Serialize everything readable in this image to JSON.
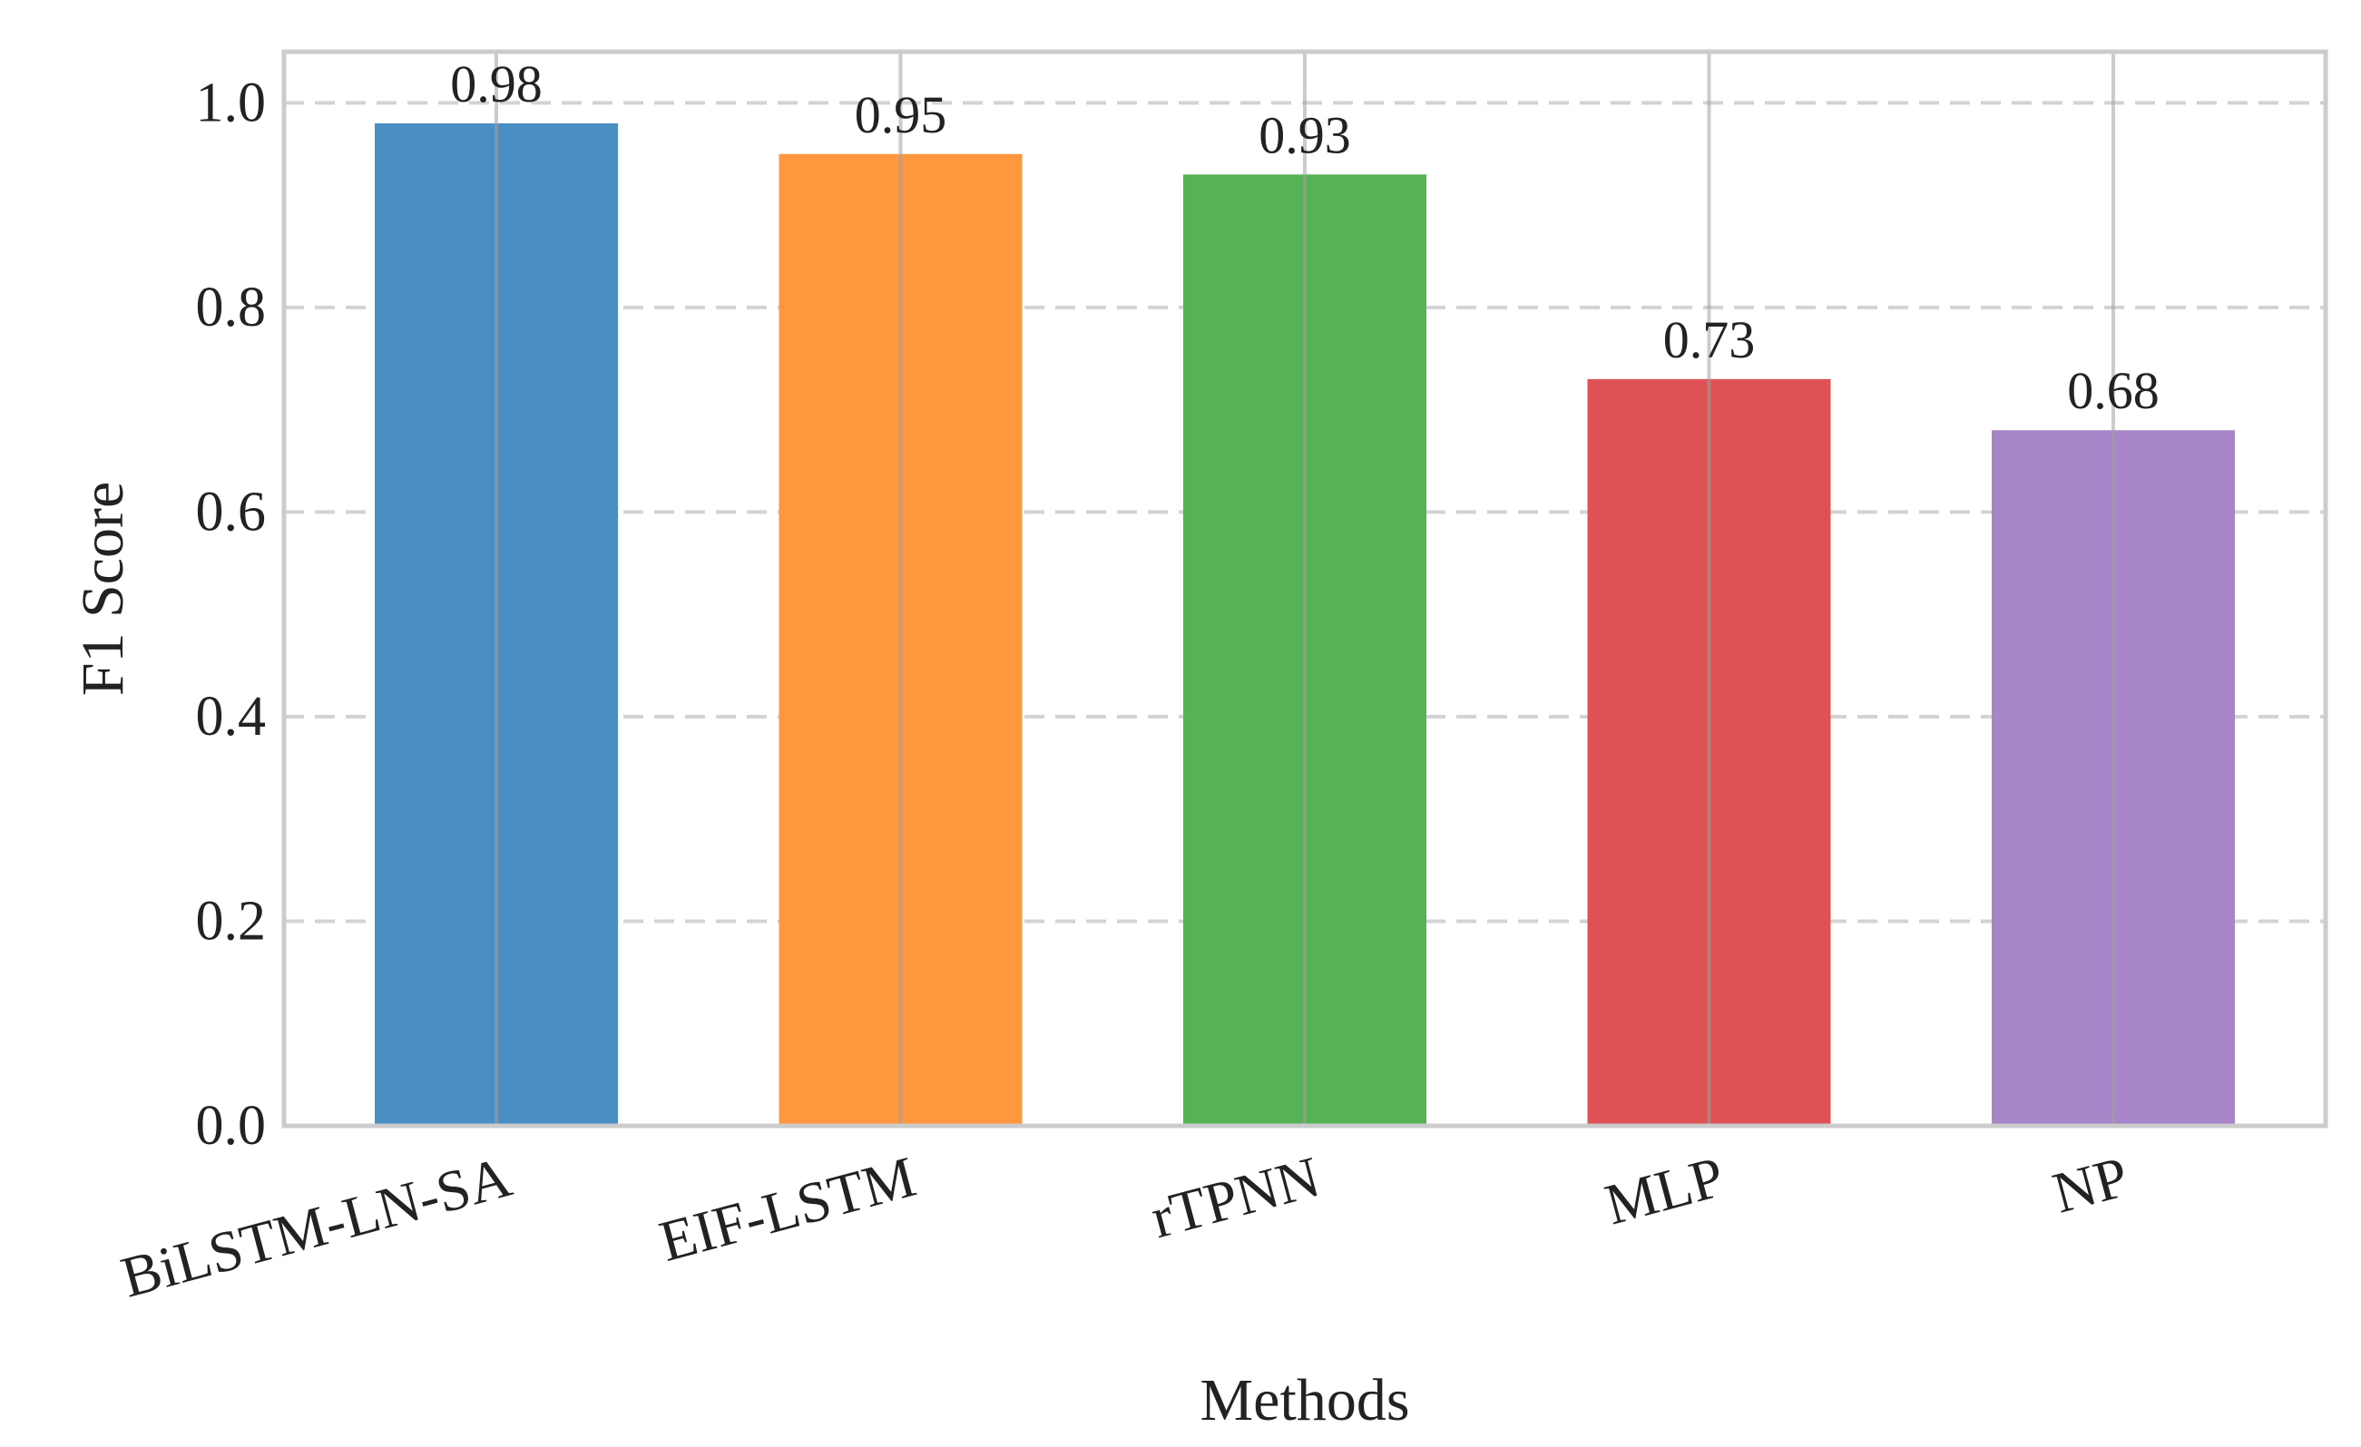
{
  "chart_data": {
    "type": "bar",
    "categories": [
      "BiLSTM-LN-SA",
      "EIF-LSTM",
      "rTPNN",
      "MLP",
      "NP"
    ],
    "values": [
      0.98,
      0.95,
      0.93,
      0.73,
      0.68
    ],
    "value_labels": [
      "0.98",
      "0.95",
      "0.93",
      "0.73",
      "0.68"
    ],
    "colors": [
      "#4a8fc3",
      "#fe973e",
      "#55b255",
      "#de5154",
      "#a885c8"
    ],
    "xlabel": "Methods",
    "ylabel": "F1 Score",
    "ylim": [
      0,
      1.05
    ],
    "yticks": [
      0.0,
      0.2,
      0.4,
      0.6,
      0.8,
      1.0
    ],
    "ytick_labels": [
      "0.0",
      "0.2",
      "0.4",
      "0.6",
      "0.8",
      "1.0"
    ],
    "grid": true,
    "grid_style": "dashed-horizontal, solid-vertical",
    "xtick_rotation_deg": 15
  }
}
